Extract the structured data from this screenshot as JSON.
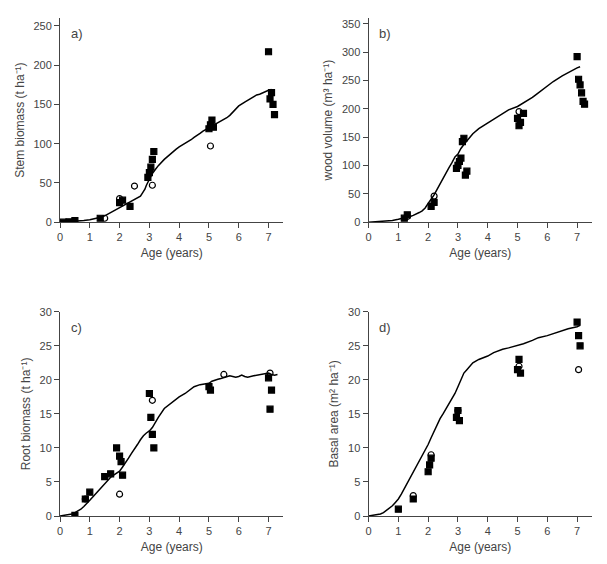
{
  "chart_data": [
    {
      "type": "line",
      "xlabel": "Age (years)",
      "ylabel": "Stem biomass (t ha⁻¹)",
      "annotations": [
        "a)"
      ],
      "xlim": [
        0,
        7.5
      ],
      "ylim": [
        0,
        260
      ],
      "xticks": [
        0,
        1,
        2,
        3,
        4,
        5,
        6,
        7
      ],
      "yticks": [
        0,
        50,
        100,
        150,
        200,
        250
      ],
      "grid": false,
      "series": [
        {
          "type": "line",
          "color": "black",
          "line_style": "solid",
          "x": [
            0,
            0.1,
            0.3,
            0.5,
            0.7,
            0.8,
            1.0,
            1.2,
            1.4,
            1.5,
            1.6,
            1.8,
            2.0,
            2.1,
            2.2,
            2.3,
            2.4,
            2.5,
            2.6,
            2.7,
            2.75,
            2.8,
            2.85,
            2.9,
            3.0,
            3.05,
            3.1,
            3.2,
            3.3,
            3.5,
            3.7,
            3.9,
            4.0,
            4.2,
            4.4,
            4.5,
            4.6,
            4.7,
            4.8,
            4.9,
            5.0,
            5.1,
            5.2,
            5.3,
            5.4,
            5.5,
            5.6,
            5.7,
            5.8,
            6.0,
            6.2,
            6.4,
            6.5,
            6.6,
            6.7,
            6.8,
            6.9,
            7.0,
            7.1
          ],
          "values": [
            0,
            0.2,
            0.5,
            1.0,
            1.5,
            2.0,
            3.0,
            4.5,
            6.5,
            8.0,
            10.0,
            14.0,
            18.0,
            20.0,
            22.0,
            24.0,
            26.0,
            28.0,
            30.0,
            33.0,
            36.0,
            39.0,
            42.0,
            47.0,
            55.0,
            58.0,
            62.0,
            67.0,
            72.0,
            80.0,
            87.0,
            93.0,
            96.0,
            100.0,
            105.0,
            108.0,
            110.0,
            113.0,
            116.0,
            118.0,
            120.0,
            122.0,
            124.0,
            126.0,
            128.0,
            130.0,
            133.0,
            136.0,
            140.0,
            148.0,
            153.0,
            158.0,
            160.0,
            162.0,
            163.0,
            165.0,
            167.0,
            168.0,
            169.0
          ]
        },
        {
          "type": "scatter",
          "color": "black",
          "marker": "square",
          "x": [
            0.1,
            0.3,
            0.5,
            1.35,
            2.0,
            2.1,
            2.35,
            2.95,
            3.0,
            3.05,
            3.1,
            3.15,
            5.0,
            5.05,
            5.1,
            5.15,
            7.0,
            7.05,
            7.1,
            7.15,
            7.2
          ],
          "values": [
            0,
            0.5,
            2,
            5,
            25,
            28,
            20,
            57,
            63,
            70,
            80,
            90,
            119,
            124,
            130,
            121,
            217,
            157,
            165,
            150,
            137
          ]
        },
        {
          "type": "scatter",
          "color": "black",
          "marker": "circle-open",
          "x": [
            1.5,
            2.0,
            2.5,
            3.1,
            5.05
          ],
          "values": [
            5,
            30,
            46,
            47,
            97
          ]
        }
      ]
    },
    {
      "type": "line",
      "xlabel": "Age (years)",
      "ylabel": "wood volume (m³ ha⁻¹)",
      "annotations": [
        "b)"
      ],
      "xlim": [
        0,
        7.5
      ],
      "ylim": [
        0,
        360
      ],
      "xticks": [
        0,
        1,
        2,
        3,
        4,
        5,
        6,
        7
      ],
      "yticks": [
        0,
        50,
        100,
        150,
        200,
        250,
        300,
        350
      ],
      "grid": false,
      "series": [
        {
          "type": "line",
          "color": "black",
          "line_style": "solid",
          "x": [
            0,
            0.2,
            0.5,
            0.8,
            1.0,
            1.2,
            1.3,
            1.4,
            1.5,
            1.6,
            1.7,
            1.8,
            1.9,
            2.0,
            2.1,
            2.2,
            2.3,
            2.4,
            2.5,
            2.6,
            2.7,
            2.8,
            2.9,
            3.0,
            3.05,
            3.1,
            3.2,
            3.3,
            3.5,
            3.7,
            4.0,
            4.2,
            4.5,
            4.7,
            5.0,
            5.1,
            5.2,
            5.3,
            5.4,
            5.5,
            5.6,
            5.7,
            5.8,
            6.0,
            6.2,
            6.5,
            6.7,
            7.0,
            7.1
          ],
          "values": [
            0,
            0.5,
            1.5,
            3.0,
            5.0,
            7.0,
            8.0,
            10.0,
            12.0,
            14.0,
            17.0,
            20.0,
            25.0,
            33.0,
            40.0,
            48.0,
            58.0,
            68.0,
            78.0,
            88.0,
            96.0,
            105.0,
            115.0,
            120.0,
            125.0,
            130.0,
            137.0,
            144.0,
            156.0,
            165.0,
            175.0,
            182.0,
            192.0,
            198.0,
            204.0,
            207.0,
            210.0,
            213.0,
            216.0,
            220.0,
            224.0,
            228.0,
            232.0,
            240.0,
            248.0,
            258.0,
            264.0,
            272.0,
            274.0
          ]
        },
        {
          "type": "scatter",
          "color": "black",
          "marker": "square",
          "x": [
            1.2,
            1.3,
            2.1,
            2.2,
            2.95,
            3.0,
            3.05,
            3.1,
            3.15,
            3.2,
            3.25,
            3.3,
            5.0,
            5.05,
            5.1,
            5.2,
            7.0,
            7.05,
            7.1,
            7.15,
            7.2,
            7.25
          ],
          "values": [
            7,
            13,
            28,
            35,
            95,
            100,
            107,
            113,
            142,
            148,
            83,
            90,
            183,
            170,
            176,
            192,
            292,
            252,
            242,
            228,
            213,
            208
          ]
        },
        {
          "type": "scatter",
          "color": "black",
          "marker": "circle-open",
          "x": [
            1.3,
            2.2,
            3.05,
            5.05
          ],
          "values": [
            10,
            46,
            107,
            195
          ]
        }
      ]
    },
    {
      "type": "line",
      "xlabel": "Age (years)",
      "ylabel": "Root biomass (t ha⁻¹)",
      "annotations": [
        "c)"
      ],
      "xlim": [
        0,
        7.5
      ],
      "ylim": [
        0,
        30
      ],
      "xticks": [
        0,
        1,
        2,
        3,
        4,
        5,
        6,
        7
      ],
      "yticks": [
        0,
        5,
        10,
        15,
        20,
        25,
        30
      ],
      "grid": false,
      "series": [
        {
          "type": "line",
          "color": "black",
          "line_style": "solid",
          "x": [
            0,
            0.2,
            0.4,
            0.5,
            0.6,
            0.7,
            0.8,
            0.9,
            1.0,
            1.1,
            1.2,
            1.3,
            1.4,
            1.5,
            1.6,
            1.7,
            1.8,
            1.9,
            2.0,
            2.1,
            2.2,
            2.3,
            2.4,
            2.5,
            2.6,
            2.7,
            2.8,
            2.9,
            3.0,
            3.1,
            3.2,
            3.3,
            3.5,
            3.7,
            4.0,
            4.2,
            4.5,
            4.7,
            5.0,
            5.1,
            5.2,
            5.3,
            5.4,
            5.5,
            5.6,
            5.7,
            5.8,
            5.9,
            6.0,
            6.1,
            6.2,
            6.3,
            6.5,
            6.7,
            7.0,
            7.1,
            7.2,
            7.3
          ],
          "values": [
            0,
            0.1,
            0.3,
            0.5,
            0.7,
            1.0,
            1.4,
            1.8,
            2.3,
            2.8,
            3.3,
            3.8,
            4.3,
            4.8,
            5.3,
            5.7,
            6.0,
            6.3,
            6.6,
            7.2,
            7.8,
            8.5,
            9.2,
            9.8,
            10.5,
            11.2,
            11.8,
            12.2,
            12.5,
            13.0,
            13.8,
            14.5,
            15.8,
            16.5,
            17.5,
            18.0,
            19.0,
            19.3,
            19.5,
            19.8,
            20.0,
            20.1,
            20.2,
            20.3,
            20.5,
            20.6,
            20.5,
            20.4,
            20.5,
            20.7,
            20.5,
            20.4,
            20.6,
            20.8,
            21.0,
            20.8,
            20.7,
            20.8
          ]
        },
        {
          "type": "scatter",
          "color": "black",
          "marker": "square",
          "x": [
            0.5,
            0.85,
            1.0,
            1.5,
            1.7,
            1.9,
            2.0,
            2.05,
            2.1,
            3.0,
            3.05,
            3.1,
            3.15,
            5.0,
            5.05,
            7.0,
            7.05,
            7.1
          ],
          "values": [
            0.1,
            2.5,
            3.5,
            5.8,
            6.2,
            10.0,
            8.8,
            8.0,
            6.0,
            18.0,
            14.5,
            12.0,
            10.0,
            19.0,
            18.5,
            20.3,
            15.7,
            18.5
          ]
        },
        {
          "type": "scatter",
          "color": "black",
          "marker": "circle-open",
          "x": [
            0.85,
            2.0,
            3.1,
            5.5,
            7.05
          ],
          "values": [
            2.5,
            3.2,
            17.0,
            20.8,
            21.0
          ]
        }
      ]
    },
    {
      "type": "line",
      "xlabel": "Age (years)",
      "ylabel": "Basal area (m² ha⁻¹)",
      "annotations": [
        "d)"
      ],
      "xlim": [
        0,
        7.5
      ],
      "ylim": [
        0,
        30
      ],
      "xticks": [
        0,
        1,
        2,
        3,
        4,
        5,
        6,
        7
      ],
      "yticks": [
        0,
        5,
        10,
        15,
        20,
        25,
        30
      ],
      "grid": false,
      "series": [
        {
          "type": "line",
          "color": "black",
          "line_style": "solid",
          "x": [
            0,
            0.2,
            0.4,
            0.5,
            0.6,
            0.7,
            0.8,
            0.9,
            1.0,
            1.1,
            1.2,
            1.3,
            1.4,
            1.5,
            1.6,
            1.7,
            1.8,
            1.9,
            2.0,
            2.1,
            2.2,
            2.3,
            2.4,
            2.5,
            2.7,
            2.9,
            3.0,
            3.1,
            3.2,
            3.3,
            3.5,
            3.7,
            4.0,
            4.2,
            4.5,
            4.7,
            5.0,
            5.2,
            5.5,
            5.7,
            6.0,
            6.2,
            6.5,
            6.7,
            7.0,
            7.1
          ],
          "values": [
            0,
            0.1,
            0.3,
            0.5,
            0.8,
            1.1,
            1.5,
            2.0,
            2.5,
            3.2,
            4.0,
            4.8,
            5.7,
            6.5,
            7.3,
            8.2,
            9.0,
            9.8,
            10.5,
            11.5,
            12.5,
            13.5,
            14.3,
            15.0,
            16.5,
            18.0,
            19.0,
            20.0,
            21.0,
            21.5,
            22.5,
            23.0,
            23.5,
            24.0,
            24.5,
            24.7,
            25.0,
            25.3,
            25.8,
            26.2,
            26.5,
            26.8,
            27.2,
            27.5,
            27.8,
            28.0
          ]
        },
        {
          "type": "scatter",
          "color": "black",
          "marker": "square",
          "x": [
            1.0,
            1.5,
            2.0,
            2.05,
            2.1,
            2.95,
            3.0,
            3.05,
            5.0,
            5.05,
            5.1,
            7.0,
            7.05,
            7.1
          ],
          "values": [
            1.0,
            2.5,
            6.5,
            7.5,
            8.5,
            14.5,
            15.5,
            14.0,
            21.5,
            23.0,
            21.0,
            28.5,
            26.5,
            25.0
          ]
        },
        {
          "type": "scatter",
          "color": "black",
          "marker": "circle-open",
          "x": [
            1.5,
            2.1,
            3.0,
            5.05,
            7.05
          ],
          "values": [
            3.0,
            9.0,
            15.5,
            22.0,
            21.5
          ]
        }
      ]
    }
  ]
}
